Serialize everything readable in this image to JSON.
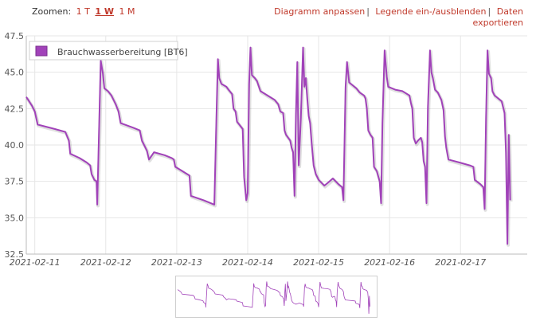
{
  "zoom": {
    "label": "Zoomen:",
    "options": [
      "1 T",
      "1 W",
      "1 M"
    ],
    "active": "1 W"
  },
  "links": {
    "adjust": "Diagramm anpassen",
    "legend_toggle": "Legende ein-/ausblenden",
    "export": "Daten exportieren"
  },
  "colors": {
    "series": "#a142b9",
    "link": "#c0392b",
    "grid": "#e6e6e6"
  },
  "chart_data": {
    "type": "line",
    "title": "",
    "xlabel": "",
    "ylabel": "",
    "ylim": [
      32.5,
      47.5
    ],
    "yticks": [
      "47.5",
      "45.0",
      "42.5",
      "40.0",
      "37.5",
      "35.0",
      "32.5"
    ],
    "xlim": [
      0,
      7.06
    ],
    "xticks": [
      {
        "label": "2021-02-11",
        "value": 0.12
      },
      {
        "label": "2021-02-12",
        "value": 1.12
      },
      {
        "label": "2021-02-13",
        "value": 2.12
      },
      {
        "label": "2021-02-14",
        "value": 3.12
      },
      {
        "label": "2021-02-15",
        "value": 4.12
      },
      {
        "label": "2021-02-16",
        "value": 5.12
      },
      {
        "label": "2021-02-17",
        "value": 6.12
      }
    ],
    "legend": {
      "position": "top-left",
      "label": "Brauchwasserbereitung [BT6]"
    },
    "series": [
      {
        "name": "Brauchwasserbereitung [BT6]",
        "points": [
          [
            0.0,
            43.3
          ],
          [
            0.08,
            42.7
          ],
          [
            0.12,
            42.3
          ],
          [
            0.16,
            41.4
          ],
          [
            0.4,
            41.1
          ],
          [
            0.55,
            40.9
          ],
          [
            0.6,
            40.3
          ],
          [
            0.62,
            39.4
          ],
          [
            0.75,
            39.1
          ],
          [
            0.85,
            38.8
          ],
          [
            0.9,
            38.6
          ],
          [
            0.92,
            38.0
          ],
          [
            0.96,
            37.6
          ],
          [
            0.99,
            37.5
          ],
          [
            1.0,
            35.9
          ],
          [
            1.03,
            42.0
          ],
          [
            1.05,
            45.8
          ],
          [
            1.08,
            44.9
          ],
          [
            1.1,
            43.9
          ],
          [
            1.15,
            43.7
          ],
          [
            1.2,
            43.4
          ],
          [
            1.26,
            42.8
          ],
          [
            1.3,
            42.3
          ],
          [
            1.33,
            41.5
          ],
          [
            1.5,
            41.2
          ],
          [
            1.6,
            41.0
          ],
          [
            1.63,
            40.3
          ],
          [
            1.67,
            39.9
          ],
          [
            1.7,
            39.6
          ],
          [
            1.73,
            39.0
          ],
          [
            1.8,
            39.5
          ],
          [
            1.95,
            39.3
          ],
          [
            2.05,
            39.1
          ],
          [
            2.08,
            39.0
          ],
          [
            2.1,
            38.5
          ],
          [
            2.2,
            38.2
          ],
          [
            2.3,
            37.9
          ],
          [
            2.32,
            36.5
          ],
          [
            2.5,
            36.2
          ],
          [
            2.65,
            35.9
          ],
          [
            2.68,
            42.0
          ],
          [
            2.7,
            45.9
          ],
          [
            2.72,
            44.6
          ],
          [
            2.75,
            44.2
          ],
          [
            2.82,
            44.0
          ],
          [
            2.85,
            43.8
          ],
          [
            2.9,
            43.5
          ],
          [
            2.92,
            42.5
          ],
          [
            2.95,
            42.3
          ],
          [
            2.97,
            41.6
          ],
          [
            3.05,
            41.1
          ],
          [
            3.07,
            37.8
          ],
          [
            3.1,
            36.2
          ],
          [
            3.12,
            36.7
          ],
          [
            3.14,
            44.2
          ],
          [
            3.16,
            46.7
          ],
          [
            3.18,
            44.8
          ],
          [
            3.22,
            44.6
          ],
          [
            3.25,
            44.4
          ],
          [
            3.3,
            43.7
          ],
          [
            3.4,
            43.4
          ],
          [
            3.5,
            43.1
          ],
          [
            3.55,
            42.8
          ],
          [
            3.58,
            42.3
          ],
          [
            3.62,
            42.2
          ],
          [
            3.64,
            41.0
          ],
          [
            3.66,
            40.7
          ],
          [
            3.72,
            40.3
          ],
          [
            3.74,
            39.8
          ],
          [
            3.76,
            39.5
          ],
          [
            3.78,
            36.5
          ],
          [
            3.8,
            42.1
          ],
          [
            3.82,
            45.7
          ],
          [
            3.84,
            38.6
          ],
          [
            3.87,
            41.9
          ],
          [
            3.9,
            46.7
          ],
          [
            3.92,
            44.0
          ],
          [
            3.94,
            44.6
          ],
          [
            3.96,
            43.2
          ],
          [
            3.98,
            42.0
          ],
          [
            4.0,
            41.5
          ],
          [
            4.02,
            40.2
          ],
          [
            4.05,
            38.6
          ],
          [
            4.08,
            38.0
          ],
          [
            4.12,
            37.6
          ],
          [
            4.2,
            37.2
          ],
          [
            4.25,
            37.4
          ],
          [
            4.32,
            37.7
          ],
          [
            4.4,
            37.3
          ],
          [
            4.45,
            37.1
          ],
          [
            4.47,
            36.2
          ],
          [
            4.5,
            44.0
          ],
          [
            4.52,
            45.7
          ],
          [
            4.55,
            44.3
          ],
          [
            4.6,
            44.1
          ],
          [
            4.65,
            43.9
          ],
          [
            4.7,
            43.6
          ],
          [
            4.76,
            43.4
          ],
          [
            4.78,
            43.2
          ],
          [
            4.8,
            42.5
          ],
          [
            4.82,
            41.0
          ],
          [
            4.85,
            40.7
          ],
          [
            4.88,
            40.5
          ],
          [
            4.9,
            38.5
          ],
          [
            4.94,
            38.2
          ],
          [
            4.98,
            37.5
          ],
          [
            5.0,
            36.0
          ],
          [
            5.02,
            41.5
          ],
          [
            5.05,
            46.5
          ],
          [
            5.08,
            44.7
          ],
          [
            5.1,
            44.0
          ],
          [
            5.2,
            43.8
          ],
          [
            5.3,
            43.7
          ],
          [
            5.4,
            43.4
          ],
          [
            5.42,
            42.9
          ],
          [
            5.44,
            42.5
          ],
          [
            5.46,
            40.5
          ],
          [
            5.49,
            40.1
          ],
          [
            5.52,
            40.3
          ],
          [
            5.56,
            40.5
          ],
          [
            5.58,
            40.2
          ],
          [
            5.6,
            38.9
          ],
          [
            5.62,
            38.5
          ],
          [
            5.64,
            36.0
          ],
          [
            5.66,
            42.6
          ],
          [
            5.69,
            46.5
          ],
          [
            5.71,
            45.0
          ],
          [
            5.73,
            44.6
          ],
          [
            5.76,
            43.8
          ],
          [
            5.8,
            43.6
          ],
          [
            5.85,
            43.1
          ],
          [
            5.88,
            42.4
          ],
          [
            5.9,
            40.6
          ],
          [
            5.92,
            39.8
          ],
          [
            5.95,
            39.0
          ],
          [
            6.1,
            38.8
          ],
          [
            6.25,
            38.6
          ],
          [
            6.3,
            38.5
          ],
          [
            6.32,
            37.6
          ],
          [
            6.4,
            37.3
          ],
          [
            6.44,
            37.1
          ],
          [
            6.46,
            35.6
          ],
          [
            6.48,
            41.9
          ],
          [
            6.5,
            46.5
          ],
          [
            6.52,
            44.9
          ],
          [
            6.55,
            44.6
          ],
          [
            6.57,
            43.7
          ],
          [
            6.6,
            43.4
          ],
          [
            6.65,
            43.2
          ],
          [
            6.7,
            43.0
          ],
          [
            6.72,
            42.6
          ],
          [
            6.74,
            42.2
          ],
          [
            6.76,
            39.5
          ],
          [
            6.78,
            33.2
          ],
          [
            6.8,
            40.7
          ],
          [
            6.82,
            36.2
          ]
        ]
      }
    ]
  }
}
